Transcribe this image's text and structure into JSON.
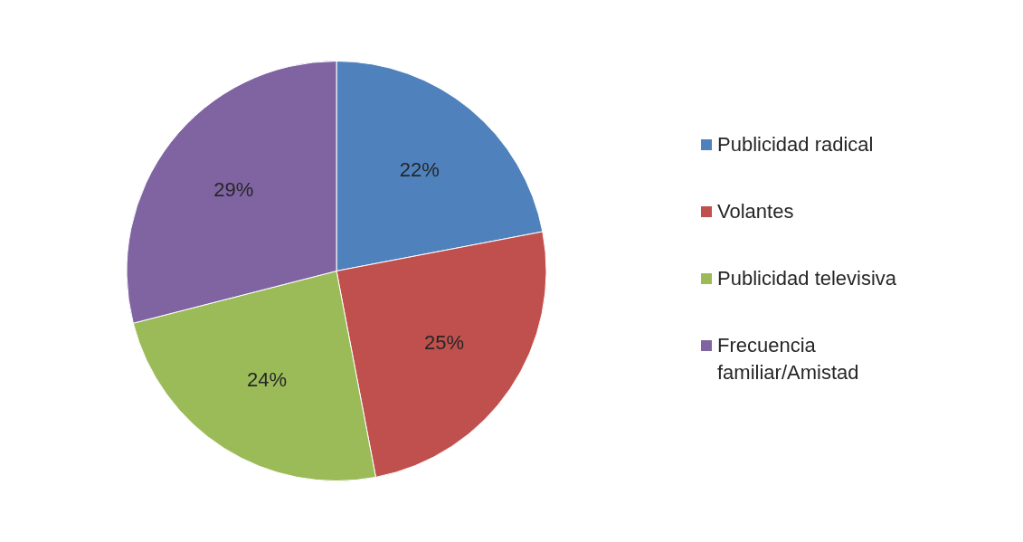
{
  "chart_data": {
    "type": "pie",
    "categories": [
      "Publicidad radical",
      "Volantes",
      "Publicidad televisiva",
      "Frecuencia familiar/Amistad"
    ],
    "values": [
      22,
      25,
      24,
      29
    ],
    "colors": [
      "#4f81bd",
      "#c0504d",
      "#9bbb59",
      "#8064a2"
    ],
    "value_labels": [
      "22%",
      "25%",
      "24%",
      "29%"
    ],
    "legend": "right"
  }
}
